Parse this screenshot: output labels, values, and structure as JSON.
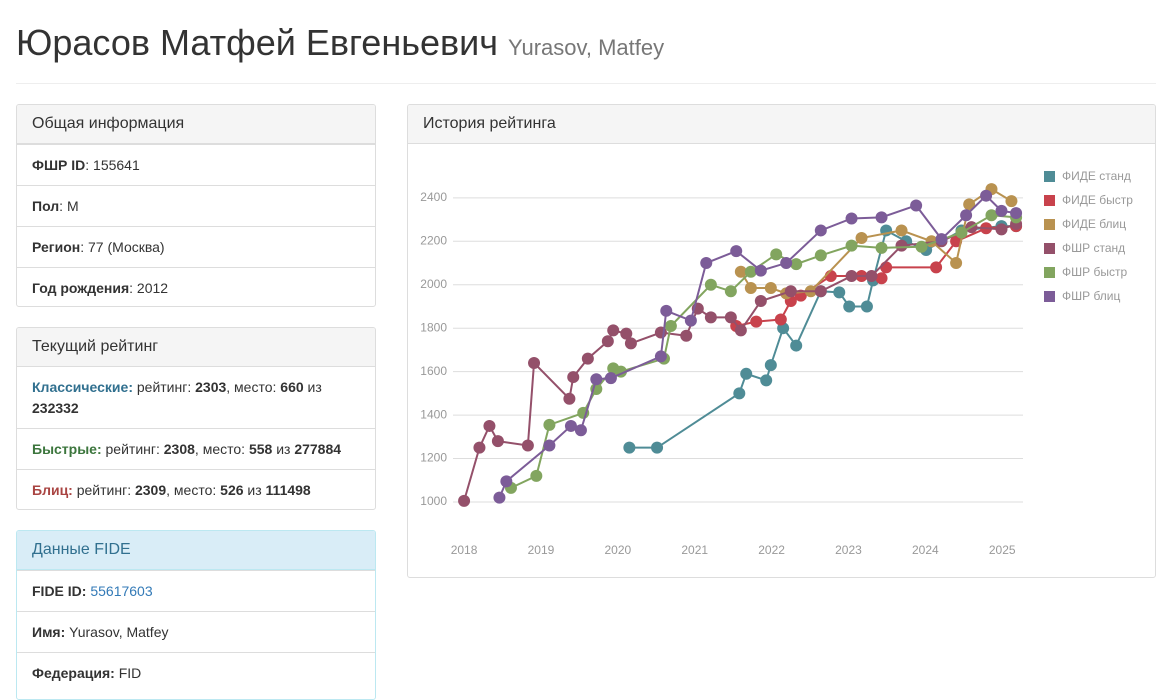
{
  "header": {
    "title": "Юрасов Матфей Евгеньевич",
    "subtitle": "Yurasov, Matfey"
  },
  "general": {
    "title": "Общая информация",
    "rows": [
      {
        "label": "ФШР ID",
        "value": ": 155641"
      },
      {
        "label": "Пол",
        "value": ": М"
      },
      {
        "label": "Регион",
        "value": ": 77 (Москва)"
      },
      {
        "label": "Год рождения",
        "value": ": 2012"
      }
    ]
  },
  "current": {
    "title": "Текущий рейтинг",
    "rows": [
      {
        "label": "Классические:",
        "rating_text": "рейтинг:",
        "rating": "2303",
        "place_text": ", место:",
        "place": "660",
        "of_text": "из",
        "total": "232332"
      },
      {
        "label": "Быстрые:",
        "rating_text": "рейтинг:",
        "rating": "2308",
        "place_text": ", место:",
        "place": "558",
        "of_text": "из",
        "total": "277884"
      },
      {
        "label": "Блиц:",
        "rating_text": "рейтинг:",
        "rating": "2309",
        "place_text": ", место:",
        "place": "526",
        "of_text": "из",
        "total": "111498"
      }
    ]
  },
  "fide": {
    "title": "Данные FIDE",
    "rows": [
      {
        "label": "FIDE ID:",
        "value": "55617603"
      },
      {
        "label": "Имя:",
        "value": "Yurasov, Matfey"
      },
      {
        "label": "Федерация:",
        "value": "FID"
      }
    ]
  },
  "chart_panel": {
    "title": "История рейтинга"
  },
  "chart_data": {
    "type": "line",
    "legend": "right",
    "grid": true,
    "xlim": [
      2017.83,
      2025.27
    ],
    "xticks": [
      2018,
      2019,
      2020,
      2021,
      2022,
      2023,
      2024,
      2025
    ],
    "ylim": [
      940,
      2450
    ],
    "yticks": [
      1000,
      1200,
      1400,
      1600,
      1800,
      2000,
      2200,
      2400
    ],
    "series": [
      {
        "name": "ФИДЕ станд",
        "color": "#4f8c96",
        "x": [
          2020.15,
          2020.51,
          2021.58,
          2021.67,
          2021.93,
          2021.99,
          2022.15,
          2022.32,
          2022.64,
          2022.88,
          2023.01,
          2023.24,
          2023.32,
          2023.49,
          2023.75,
          2024.01,
          2024.47,
          2024.99,
          2025.18
        ],
        "values": [
          1250,
          1250,
          1500,
          1590,
          1560,
          1630,
          1800,
          1720,
          1970,
          1965,
          1900,
          1900,
          2020,
          2250,
          2200,
          2160,
          2250,
          2270,
          2270
        ]
      },
      {
        "name": "ФИДЕ быстр",
        "color": "#c8424c",
        "x": [
          2021.54,
          2021.8,
          2022.12,
          2022.25,
          2022.38,
          2022.77,
          2023.17,
          2023.43,
          2023.49,
          2024.14,
          2024.4,
          2024.79,
          2025.18
        ],
        "values": [
          1810,
          1830,
          1840,
          1925,
          1950,
          2040,
          2040,
          2030,
          2080,
          2080,
          2200,
          2260,
          2270
        ]
      },
      {
        "name": "ФИДЕ блиц",
        "color": "#b99250",
        "x": [
          2021.6,
          2021.73,
          2021.99,
          2022.19,
          2022.51,
          2023.17,
          2023.69,
          2024.08,
          2024.4,
          2024.57,
          2024.86,
          2025.12
        ],
        "values": [
          2060,
          1985,
          1985,
          1960,
          1970,
          2215,
          2250,
          2200,
          2100,
          2370,
          2440,
          2385
        ]
      },
      {
        "name": "ФШР станд",
        "color": "#94506a",
        "x": [
          2018.0,
          2018.2,
          2018.33,
          2018.44,
          2018.83,
          2018.91,
          2019.37,
          2019.42,
          2019.61,
          2019.87,
          2019.94,
          2020.11,
          2020.17,
          2020.56,
          2020.89,
          2021.04,
          2021.21,
          2021.47,
          2021.6,
          2021.86,
          2022.25,
          2022.64,
          2023.04,
          2023.3,
          2023.69,
          2024.21,
          2024.6,
          2024.99,
          2025.18
        ],
        "values": [
          1005,
          1250,
          1350,
          1280,
          1260,
          1640,
          1475,
          1575,
          1660,
          1740,
          1790,
          1775,
          1730,
          1780,
          1765,
          1890,
          1850,
          1850,
          1790,
          1925,
          1970,
          1970,
          2040,
          2040,
          2180,
          2200,
          2265,
          2255,
          2280
        ]
      },
      {
        "name": "ФШР быстр",
        "color": "#82a55f",
        "x": [
          2018.61,
          2018.94,
          2019.11,
          2019.55,
          2019.72,
          2019.94,
          2020.04,
          2020.6,
          2020.69,
          2021.21,
          2021.47,
          2021.73,
          2022.06,
          2022.32,
          2022.64,
          2023.04,
          2023.43,
          2023.95,
          2024.47,
          2024.86,
          2025.18
        ],
        "values": [
          1065,
          1120,
          1355,
          1410,
          1520,
          1615,
          1600,
          1660,
          1810,
          2000,
          1970,
          2060,
          2140,
          2095,
          2135,
          2180,
          2170,
          2175,
          2240,
          2320,
          2310
        ]
      },
      {
        "name": "ФШР блиц",
        "color": "#7c5c98",
        "x": [
          2018.46,
          2018.55,
          2019.11,
          2019.39,
          2019.52,
          2019.72,
          2019.91,
          2020.56,
          2020.63,
          2020.95,
          2021.15,
          2021.54,
          2021.86,
          2022.19,
          2022.64,
          2023.04,
          2023.43,
          2023.88,
          2024.21,
          2024.53,
          2024.79,
          2024.99,
          2025.18
        ],
        "values": [
          1020,
          1095,
          1260,
          1350,
          1330,
          1565,
          1570,
          1670,
          1880,
          1835,
          2100,
          2155,
          2065,
          2100,
          2250,
          2305,
          2310,
          2365,
          2210,
          2320,
          2410,
          2340,
          2330
        ]
      }
    ]
  }
}
